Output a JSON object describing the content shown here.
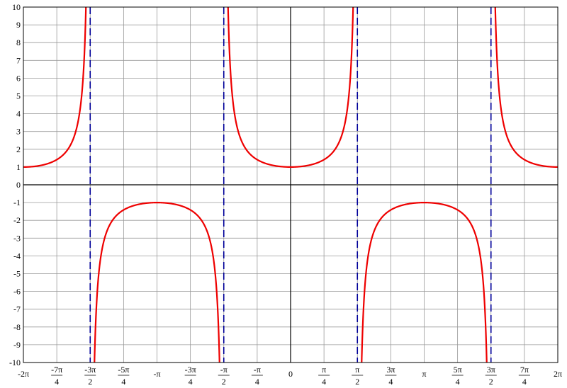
{
  "chart_data": {
    "type": "line",
    "function": "sec(x)",
    "xlim": [
      -6.283185307179586,
      6.283185307179586
    ],
    "ylim": [
      -10,
      10
    ],
    "grid": true,
    "colors": {
      "curve": "#ee0000",
      "asymptote": "#000099",
      "grid": "#999999",
      "axis": "#000000"
    },
    "y_ticks": [
      -10,
      -9,
      -8,
      -7,
      -6,
      -5,
      -4,
      -3,
      -2,
      -1,
      0,
      1,
      2,
      3,
      4,
      5,
      6,
      7,
      8,
      9,
      10
    ],
    "y_tick_labels": [
      "-10",
      "-9",
      "-8",
      "-7",
      "-6",
      "-5",
      "-4",
      "-3",
      "-2",
      "-1",
      "0",
      "1",
      "2",
      "3",
      "4",
      "5",
      "6",
      "7",
      "8",
      "9",
      "10"
    ],
    "x_ticks": [
      {
        "x": -6.283185307179586,
        "kind": "single",
        "label": "-2π"
      },
      {
        "x": -5.497787143782138,
        "kind": "frac",
        "num": "-7π",
        "den": "4"
      },
      {
        "x": -4.71238898038469,
        "kind": "frac",
        "num": "-3π",
        "den": "2"
      },
      {
        "x": -3.9269908169872414,
        "kind": "frac",
        "num": "-5π",
        "den": "4"
      },
      {
        "x": -3.141592653589793,
        "kind": "single",
        "label": "-π"
      },
      {
        "x": -2.356194490192345,
        "kind": "frac",
        "num": "-3π",
        "den": "4"
      },
      {
        "x": -1.5707963267948966,
        "kind": "frac",
        "num": "-π",
        "den": "2"
      },
      {
        "x": -0.7853981633974483,
        "kind": "frac",
        "num": "-π",
        "den": "4"
      },
      {
        "x": 0,
        "kind": "single",
        "label": "0"
      },
      {
        "x": 0.7853981633974483,
        "kind": "frac",
        "num": "π",
        "den": "4"
      },
      {
        "x": 1.5707963267948966,
        "kind": "frac",
        "num": "π",
        "den": "2"
      },
      {
        "x": 2.356194490192345,
        "kind": "frac",
        "num": "3π",
        "den": "4"
      },
      {
        "x": 3.141592653589793,
        "kind": "single",
        "label": "π"
      },
      {
        "x": 3.9269908169872414,
        "kind": "frac",
        "num": "5π",
        "den": "4"
      },
      {
        "x": 4.71238898038469,
        "kind": "frac",
        "num": "3π",
        "den": "2"
      },
      {
        "x": 5.497787143782138,
        "kind": "frac",
        "num": "7π",
        "den": "4"
      },
      {
        "x": 6.283185307179586,
        "kind": "single",
        "label": "2π"
      }
    ],
    "asymptotes": [
      -4.71238898038469,
      -1.5707963267948966,
      1.5707963267948966,
      4.71238898038469
    ],
    "series": [
      {
        "branch_domain": [
          -6.283185307179586,
          -4.71238898038469
        ]
      },
      {
        "branch_domain": [
          -4.71238898038469,
          -1.5707963267948966
        ]
      },
      {
        "branch_domain": [
          -1.5707963267948966,
          1.5707963267948966
        ]
      },
      {
        "branch_domain": [
          1.5707963267948966,
          4.71238898038469
        ]
      },
      {
        "branch_domain": [
          4.71238898038469,
          6.283185307179586
        ]
      }
    ]
  }
}
